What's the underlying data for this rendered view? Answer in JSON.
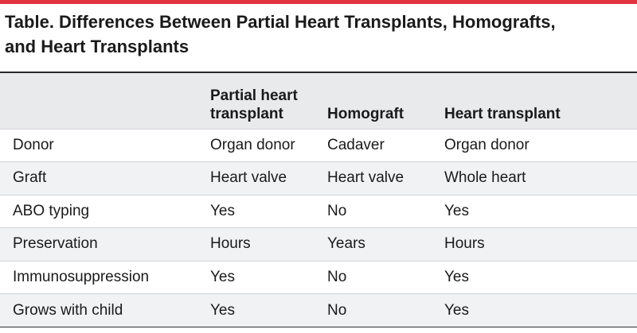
{
  "title_line1": "Table. Differences Between Partial Heart Transplants, Homografts,",
  "title_line2": "and Heart Transplants",
  "header": {
    "col0": "",
    "col1_line1": "Partial heart",
    "col1_line2": "transplant",
    "col2": "Homograft",
    "col3": "Heart transplant"
  },
  "rows": [
    {
      "label": "Donor",
      "partial": "Organ donor",
      "homograft": "Cadaver",
      "heart": "Organ donor"
    },
    {
      "label": "Graft",
      "partial": "Heart valve",
      "homograft": "Heart valve",
      "heart": "Whole heart"
    },
    {
      "label": "ABO typing",
      "partial": "Yes",
      "homograft": "No",
      "heart": "Yes"
    },
    {
      "label": "Preservation",
      "partial": "Hours",
      "homograft": "Years",
      "heart": "Hours"
    },
    {
      "label": "Immunosuppression",
      "partial": "Yes",
      "homograft": "No",
      "heart": "Yes"
    },
    {
      "label": "Grows with child",
      "partial": "Yes",
      "homograft": "No",
      "heart": "Yes"
    }
  ],
  "colors": {
    "accent_rule": "#e2323e",
    "header_bg": "#e8eaec",
    "stripe_bg": "#f1f2f4"
  }
}
